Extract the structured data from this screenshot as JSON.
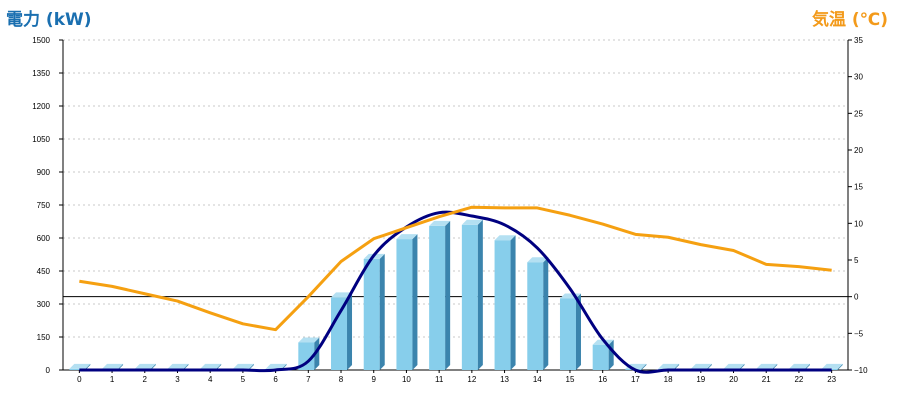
{
  "chart_data": {
    "type": "bar",
    "left_axis_label": "電力 (kW)",
    "right_axis_label": "気温 (℃)",
    "categories": [
      "0",
      "1",
      "2",
      "3",
      "4",
      "5",
      "6",
      "7",
      "8",
      "9",
      "10",
      "11",
      "12",
      "13",
      "14",
      "15",
      "16",
      "17",
      "18",
      "19",
      "20",
      "21",
      "22",
      "23"
    ],
    "y_left_ticks": [
      0,
      150,
      300,
      450,
      600,
      750,
      900,
      1050,
      1200,
      1350,
      1500
    ],
    "y_right_ticks": [
      -10,
      -5,
      0,
      5,
      10,
      15,
      20,
      25,
      30,
      35
    ],
    "ylim_left": [
      0,
      1500
    ],
    "ylim_right": [
      -10,
      35
    ],
    "grid": true,
    "series": [
      {
        "type": "bar",
        "axis": "left",
        "values": [
          5,
          5,
          5,
          5,
          5,
          5,
          5,
          125,
          330,
          505,
          595,
          655,
          660,
          590,
          490,
          325,
          115,
          5,
          5,
          5,
          5,
          5,
          5,
          5
        ]
      },
      {
        "type": "curve",
        "axis": "left",
        "values": [
          0,
          0,
          0,
          0,
          0,
          0,
          0,
          40,
          270,
          520,
          650,
          715,
          700,
          660,
          555,
          370,
          140,
          0,
          0,
          0,
          0,
          0,
          0,
          0
        ]
      },
      {
        "type": "line",
        "axis": "right",
        "values": [
          2.1,
          1.4,
          0.4,
          -0.6,
          -2.2,
          -3.7,
          -4.5,
          0.0,
          4.8,
          7.9,
          9.4,
          10.9,
          12.2,
          12.1,
          12.1,
          11.1,
          9.9,
          8.5,
          8.1,
          7.1,
          6.3,
          4.4,
          4.1,
          3.6
        ]
      }
    ],
    "colors": {
      "bar_front": "#87ceeb",
      "bar_side": "#3b84ad",
      "bar_top": "#b4e0f2",
      "curve": "#000080",
      "temperature_line": "#f5a011",
      "left_title": "#1a6fb0",
      "right_title": "#f39a1a",
      "grid": "#c8c8c8",
      "zero_temp_line": "#000000"
    }
  }
}
